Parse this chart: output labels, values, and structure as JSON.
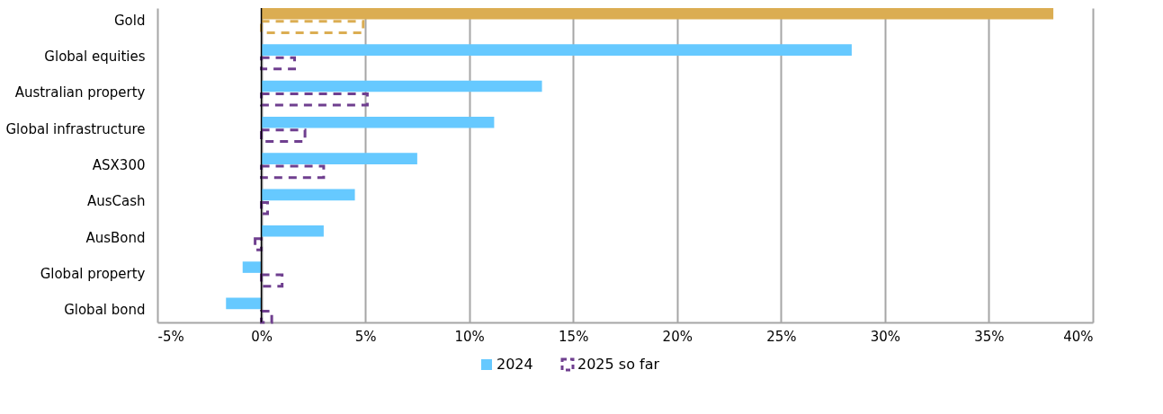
{
  "chart_data": {
    "type": "bar",
    "orientation": "horizontal",
    "categories": [
      "Gold",
      "Global equities",
      "Australian property",
      "Global infrastructure",
      "ASX300",
      "AusCash",
      "AusBond",
      "Global property",
      "Global bond"
    ],
    "series": [
      {
        "name": "2024",
        "color": "#66c9ff",
        "colors": [
          "#dbad52",
          "#66c9ff",
          "#66c9ff",
          "#66c9ff",
          "#66c9ff",
          "#66c9ff",
          "#66c9ff",
          "#66c9ff",
          "#66c9ff"
        ],
        "values": [
          38.1,
          28.4,
          13.5,
          11.2,
          7.5,
          4.5,
          3.0,
          -0.9,
          -1.7
        ]
      },
      {
        "name": "2025 so far",
        "color": "#6f3f8f",
        "colors": [
          "#dbad52",
          "#6f3f8f",
          "#6f3f8f",
          "#6f3f8f",
          "#6f3f8f",
          "#6f3f8f",
          "#6f3f8f",
          "#6f3f8f",
          "#6f3f8f"
        ],
        "line_style": "dashed",
        "values": [
          4.9,
          1.6,
          5.1,
          2.1,
          3.0,
          0.3,
          -0.3,
          1.0,
          0.5
        ]
      }
    ],
    "xlim": [
      -5,
      40
    ],
    "xticks": [
      {
        "value": -5,
        "label": "-5%"
      },
      {
        "value": 0,
        "label": "0%"
      },
      {
        "value": 5,
        "label": "5%"
      },
      {
        "value": 10,
        "label": "10%"
      },
      {
        "value": 15,
        "label": "15%"
      },
      {
        "value": 20,
        "label": "20%"
      },
      {
        "value": 25,
        "label": "25%"
      },
      {
        "value": 30,
        "label": "30%"
      },
      {
        "value": 35,
        "label": "35%"
      },
      {
        "value": 40,
        "label": "40%"
      }
    ],
    "grid": "x",
    "legend": "bottom"
  }
}
